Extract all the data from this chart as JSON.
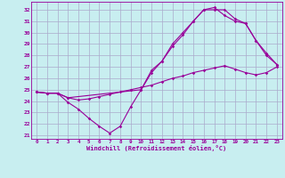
{
  "xlabel": "Windchill (Refroidissement éolien,°C)",
  "bg_color": "#c8eef0",
  "line_color": "#990099",
  "grid_color": "#aaaacc",
  "xlim": [
    -0.5,
    23.5
  ],
  "ylim": [
    20.7,
    32.7
  ],
  "yticks": [
    21,
    22,
    23,
    24,
    25,
    26,
    27,
    28,
    29,
    30,
    31,
    32
  ],
  "xticks": [
    0,
    1,
    2,
    3,
    4,
    5,
    6,
    7,
    8,
    9,
    10,
    11,
    12,
    13,
    14,
    15,
    16,
    17,
    18,
    19,
    20,
    21,
    22,
    23
  ],
  "line1_x": [
    0,
    1,
    2,
    3,
    4,
    5,
    6,
    7,
    8,
    9,
    10,
    11,
    12,
    13,
    14,
    15,
    16,
    17,
    18,
    19,
    20,
    21,
    22,
    23
  ],
  "line1_y": [
    24.8,
    24.7,
    24.7,
    23.9,
    23.3,
    22.5,
    21.8,
    21.2,
    21.8,
    23.5,
    25.0,
    26.7,
    27.5,
    29.0,
    30.0,
    31.0,
    32.0,
    32.0,
    32.0,
    31.2,
    30.8,
    29.3,
    28.0,
    27.2
  ],
  "line2_x": [
    0,
    1,
    2,
    3,
    4,
    5,
    6,
    7,
    8,
    9,
    10,
    11,
    12,
    13,
    14,
    15,
    16,
    17,
    18,
    19,
    20,
    21,
    22,
    23
  ],
  "line2_y": [
    24.8,
    24.7,
    24.7,
    24.3,
    24.1,
    24.2,
    24.4,
    24.6,
    24.8,
    25.0,
    25.2,
    25.4,
    25.7,
    26.0,
    26.2,
    26.5,
    26.7,
    26.9,
    27.1,
    26.8,
    26.5,
    26.3,
    26.5,
    27.0
  ],
  "line3_x": [
    0,
    1,
    2,
    3,
    10,
    11,
    12,
    13,
    14,
    15,
    16,
    17,
    18,
    19,
    20,
    21,
    22,
    23
  ],
  "line3_y": [
    24.8,
    24.7,
    24.7,
    24.3,
    25.0,
    26.5,
    27.5,
    28.8,
    29.8,
    31.0,
    32.0,
    32.2,
    31.5,
    31.0,
    30.8,
    29.3,
    28.2,
    27.2
  ]
}
